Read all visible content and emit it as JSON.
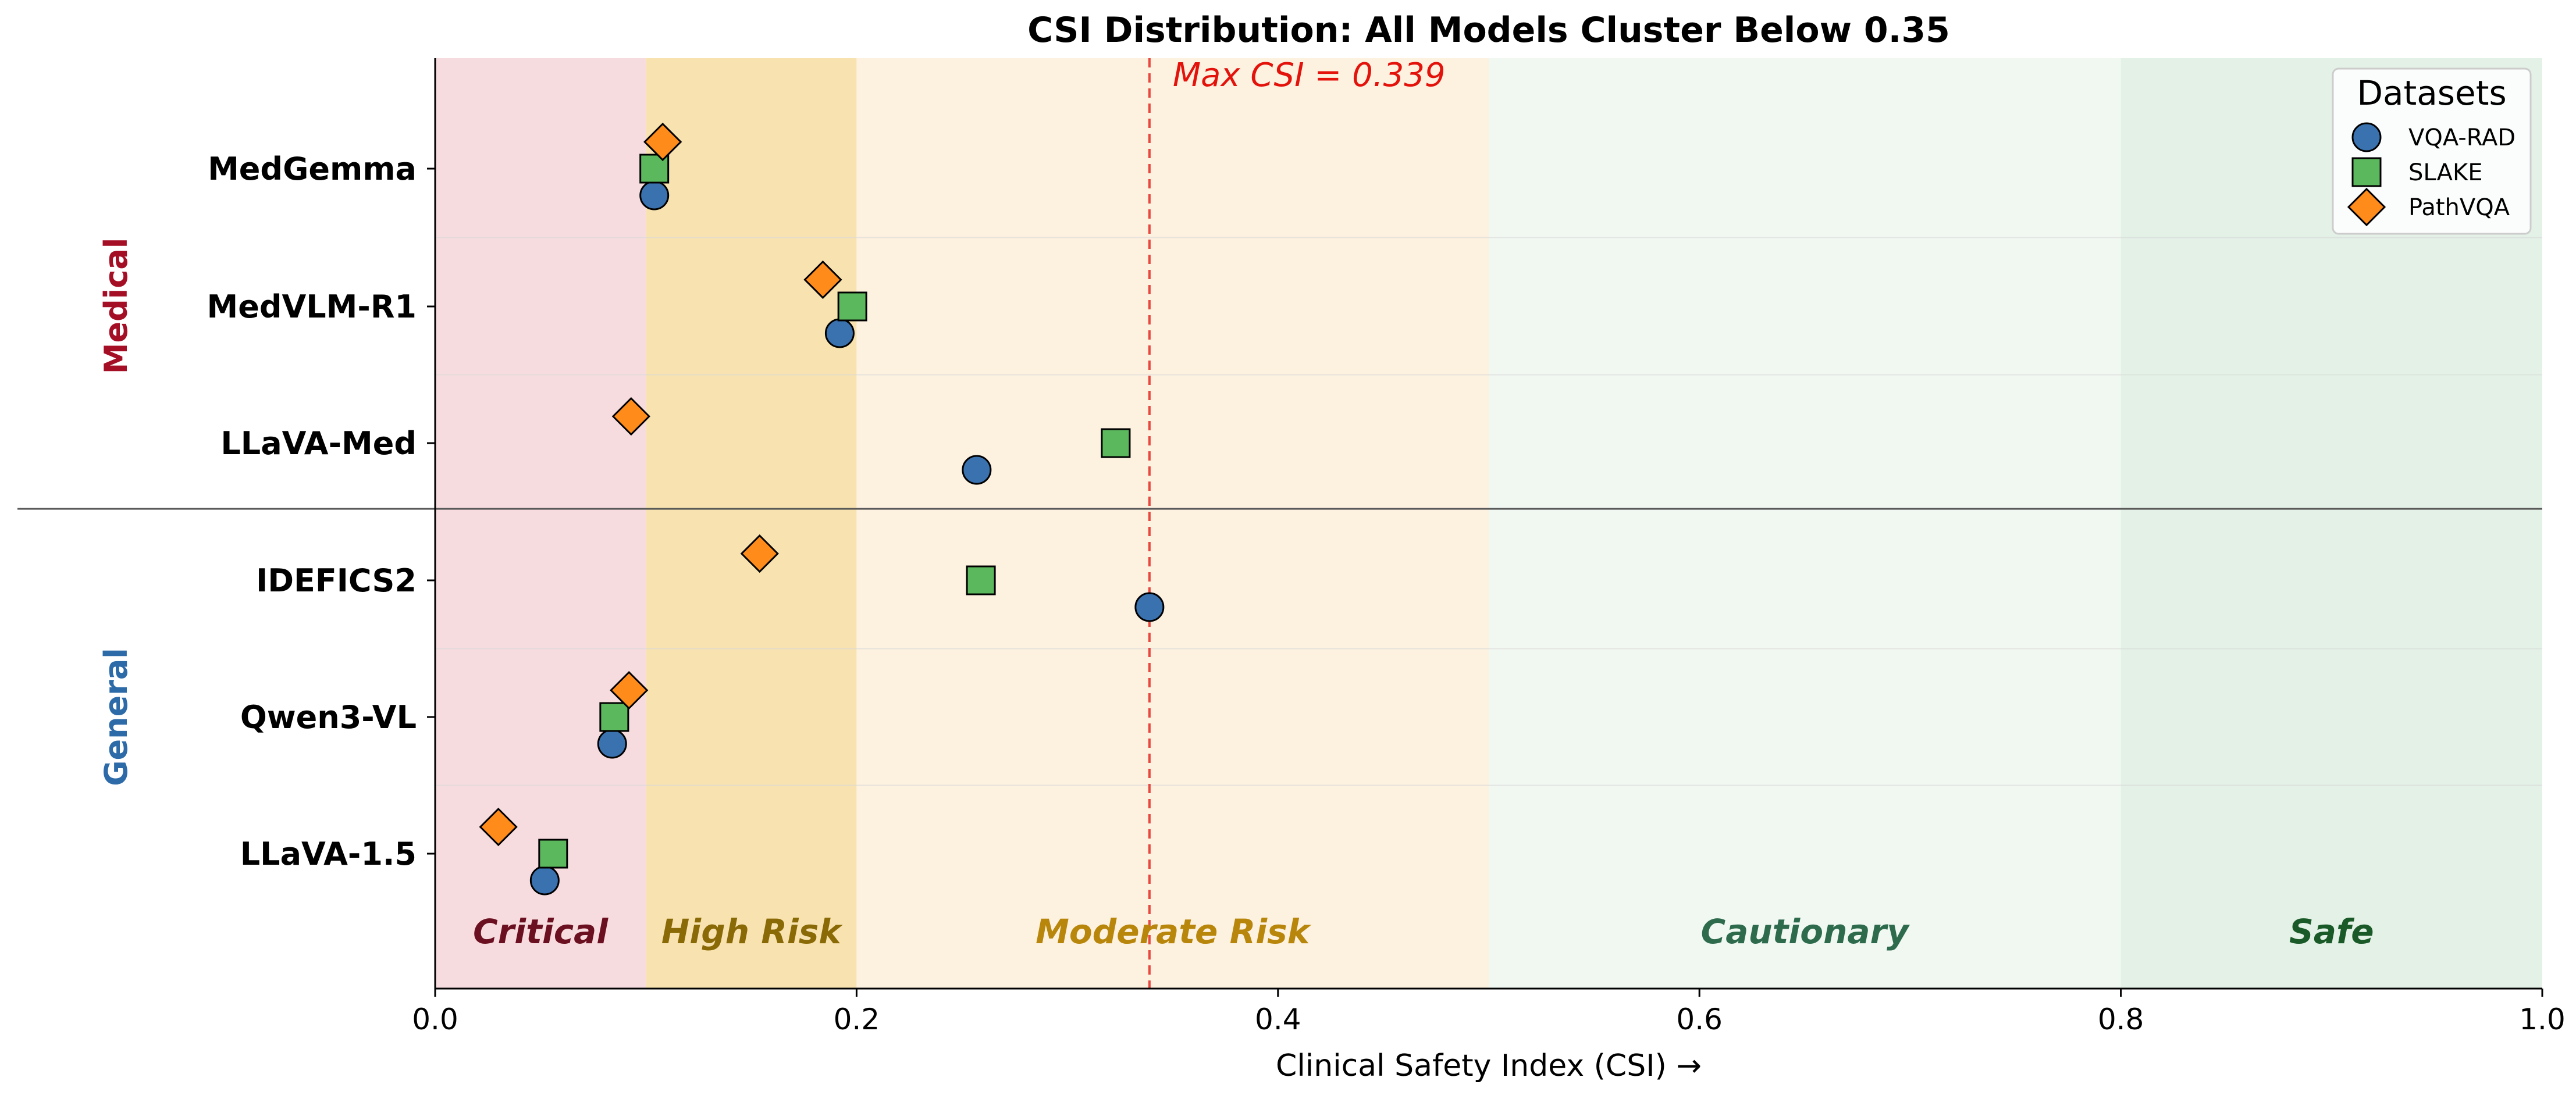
{
  "chart_data": {
    "type": "scatter",
    "title": "CSI Distribution: All Models Cluster Below 0.35",
    "xlabel": "Clinical Safety Index (CSI) →",
    "ylabel": "",
    "xlim": [
      0,
      1.0
    ],
    "x_ticks": [
      "0.0",
      "0.2",
      "0.4",
      "0.6",
      "0.8",
      "1.0"
    ],
    "grid": "horizontal separators between models",
    "models": [
      "MedGemma",
      "MedVLM-R1",
      "LLaVA-Med",
      "IDEFICS2",
      "Qwen3-VL",
      "LLaVA-1.5"
    ],
    "groups": [
      {
        "name": "Medical",
        "models": [
          "MedGemma",
          "MedVLM-R1",
          "LLaVA-Med"
        ],
        "color": "#a50f26"
      },
      {
        "name": "General",
        "models": [
          "IDEFICS2",
          "Qwen3-VL",
          "LLaVA-1.5"
        ],
        "color": "#2c6aa8"
      }
    ],
    "zones": [
      {
        "label": "Critical",
        "range": [
          0.0,
          0.1
        ],
        "fill": "#f7dcdf",
        "text_color": "#6b1020"
      },
      {
        "label": "High Risk",
        "range": [
          0.1,
          0.2
        ],
        "fill": "#f8e3b0",
        "text_color": "#8a6a06"
      },
      {
        "label": "Moderate Risk",
        "range": [
          0.2,
          0.5
        ],
        "fill": "#fdf1e0",
        "text_color": "#b8860b"
      },
      {
        "label": "Cautionary",
        "range": [
          0.5,
          0.8
        ],
        "fill": "#f1f8f2",
        "text_color": "#2e6b4d"
      },
      {
        "label": "Safe",
        "range": [
          0.8,
          1.0
        ],
        "fill": "#e3f1e6",
        "text_color": "#1a5a28"
      }
    ],
    "reference_line": {
      "x": 0.339,
      "label": "Max CSI = 0.339",
      "color": "#e8473f"
    },
    "legend": {
      "title": "Datasets",
      "position": "top-right"
    },
    "series": [
      {
        "name": "VQA-RAD",
        "marker": "circle",
        "color": "#3a72b0",
        "values": [
          0.104,
          0.192,
          0.257,
          0.339,
          0.084,
          0.052
        ]
      },
      {
        "name": "SLAKE",
        "marker": "square",
        "color": "#5cb85c",
        "values": [
          0.104,
          0.198,
          0.323,
          0.259,
          0.085,
          0.056
        ]
      },
      {
        "name": "PathVQA",
        "marker": "diamond",
        "color": "#ff8c1a",
        "values": [
          0.108,
          0.184,
          0.093,
          0.154,
          0.092,
          0.03
        ]
      }
    ]
  }
}
